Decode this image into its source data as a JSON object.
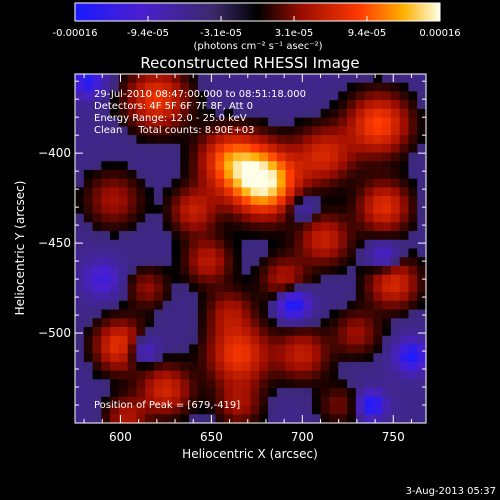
{
  "colorbar": {
    "tick_labels": [
      "-0.00016",
      "-9.4e-05",
      "-3.1e-05",
      "3.1e-05",
      "9.4e-05",
      "0.00016"
    ],
    "unit_label": "(photons cm⁻² s⁻¹ asec⁻²)",
    "range": [
      -0.00016,
      0.00016
    ]
  },
  "chart_data": {
    "type": "heatmap",
    "title": "Reconstructed RHESSI Image",
    "xlabel": "Heliocentric X (arcsec)",
    "ylabel": "Heliocentric Y (arcsec)",
    "xlim": [
      575,
      768
    ],
    "ylim": [
      -550,
      -356
    ],
    "x_ticks": [
      600,
      650,
      700,
      750
    ],
    "y_ticks": [
      -400,
      -450,
      -500
    ],
    "x_tick_labels": [
      "600",
      "650",
      "700",
      "750"
    ],
    "y_tick_labels": [
      "−400",
      "−450",
      "−500"
    ],
    "annotations": [
      "29-Jul-2010 08:47:00.000 to 08:51:18.000",
      "Detectors: 4F 5F 6F 7F 8F, Att 0",
      "Energy Range: 12.0 - 25.0 keV",
      "Clean     Total counts: 8.90E+03"
    ],
    "peak_label": "Position of Peak = [679,-419]",
    "peak": [
      679,
      -419
    ],
    "blobs": [
      {
        "x": 679,
        "y": -416,
        "v": 1.0,
        "s": 13
      },
      {
        "x": 660,
        "y": -404,
        "v": 0.6,
        "s": 12
      },
      {
        "x": 620,
        "y": -370,
        "v": 0.55,
        "s": 12
      },
      {
        "x": 640,
        "y": -432,
        "v": 0.4,
        "s": 9
      },
      {
        "x": 596,
        "y": -426,
        "v": 0.32,
        "s": 11
      },
      {
        "x": 742,
        "y": -384,
        "v": 0.6,
        "s": 12
      },
      {
        "x": 712,
        "y": -401,
        "v": 0.45,
        "s": 11
      },
      {
        "x": 745,
        "y": -430,
        "v": 0.5,
        "s": 10
      },
      {
        "x": 712,
        "y": -448,
        "v": 0.42,
        "s": 10
      },
      {
        "x": 750,
        "y": -472,
        "v": 0.48,
        "s": 10
      },
      {
        "x": 690,
        "y": -470,
        "v": 0.35,
        "s": 9
      },
      {
        "x": 700,
        "y": -512,
        "v": 0.4,
        "s": 10
      },
      {
        "x": 730,
        "y": -500,
        "v": 0.3,
        "s": 9
      },
      {
        "x": 600,
        "y": -507,
        "v": 0.55,
        "s": 10
      },
      {
        "x": 625,
        "y": -532,
        "v": 0.45,
        "s": 10
      },
      {
        "x": 603,
        "y": -547,
        "v": 0.35,
        "s": 8
      },
      {
        "x": 665,
        "y": -512,
        "v": 0.55,
        "s": 12
      },
      {
        "x": 660,
        "y": -488,
        "v": 0.3,
        "s": 9
      },
      {
        "x": 648,
        "y": -460,
        "v": 0.38,
        "s": 9
      },
      {
        "x": 615,
        "y": -475,
        "v": 0.28,
        "s": 8
      },
      {
        "x": 665,
        "y": -540,
        "v": 0.3,
        "s": 9
      },
      {
        "x": 720,
        "y": -540,
        "v": 0.22,
        "s": 8
      },
      {
        "x": 738,
        "y": -540,
        "v": -0.55,
        "s": 5
      },
      {
        "x": 695,
        "y": -484,
        "v": -0.6,
        "s": 6
      },
      {
        "x": 760,
        "y": -513,
        "v": -0.5,
        "s": 6
      },
      {
        "x": 612,
        "y": -510,
        "v": -0.4,
        "s": 6
      },
      {
        "x": 582,
        "y": -360,
        "v": -0.45,
        "s": 6
      },
      {
        "x": 745,
        "y": -458,
        "v": -0.35,
        "s": 6
      },
      {
        "x": 590,
        "y": -470,
        "v": -0.3,
        "s": 7
      },
      {
        "x": 700,
        "y": -430,
        "v": -0.25,
        "s": 6
      }
    ]
  },
  "timestamp": "3-Aug-2013 05:37"
}
